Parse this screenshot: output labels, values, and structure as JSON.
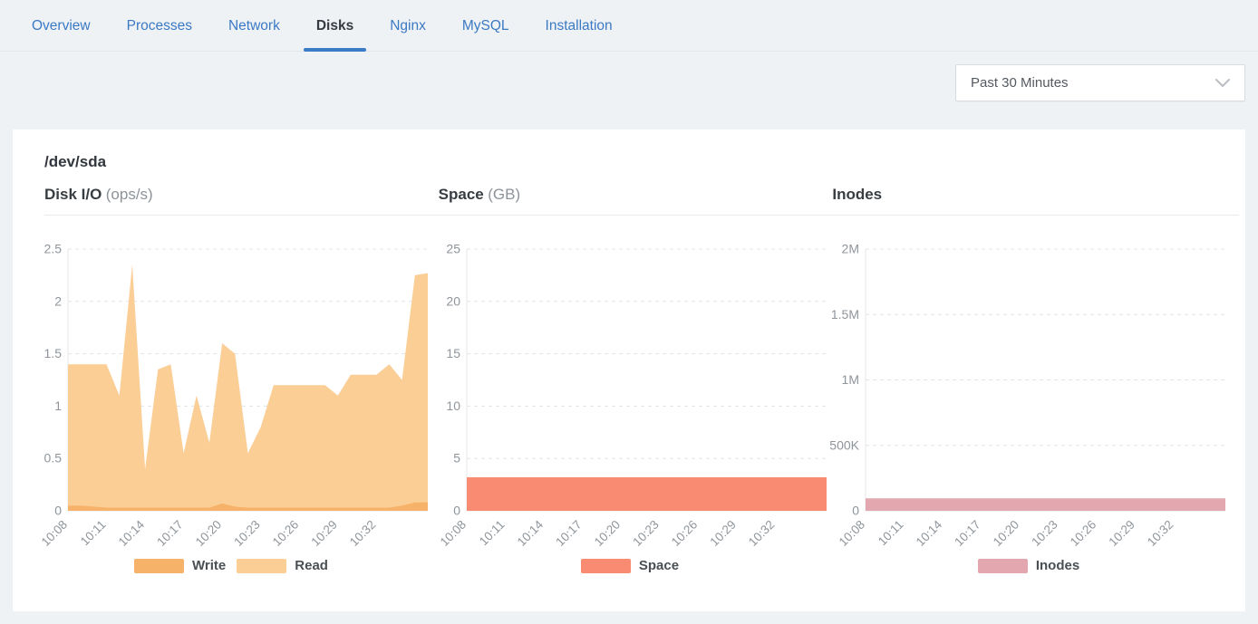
{
  "tabs": [
    {
      "label": "Overview",
      "active": false
    },
    {
      "label": "Processes",
      "active": false
    },
    {
      "label": "Network",
      "active": false
    },
    {
      "label": "Disks",
      "active": true
    },
    {
      "label": "Nginx",
      "active": false
    },
    {
      "label": "MySQL",
      "active": false
    },
    {
      "label": "Installation",
      "active": false
    }
  ],
  "toolbar": {
    "time_range_value": "Past 30 Minutes",
    "chevron_icon": "chevron-down"
  },
  "card": {
    "device_name": "/dev/sda"
  },
  "colors": {
    "accent_blue": "#3b7cc9",
    "page_bg": "#eff2f5",
    "card_bg": "#ffffff",
    "write": "#f7b269",
    "read": "#fbce96",
    "space": "#f98b72",
    "inodes": "#e3a7af",
    "grid_line": "#e0e4e8",
    "axis_line": "#e4e7ea",
    "tick_text": "#8f959b"
  },
  "chart_data": [
    {
      "type": "area",
      "title": "Disk I/O",
      "title_unit": "(ops/s)",
      "ylabel": "ops/s",
      "ylim": [
        0,
        2.5
      ],
      "grid": "dashed horizontal",
      "legend_position": "bottom",
      "x": [
        "10:08",
        "10:09",
        "10:10",
        "10:11",
        "10:12",
        "10:13",
        "10:14",
        "10:15",
        "10:16",
        "10:17",
        "10:18",
        "10:19",
        "10:20",
        "10:21",
        "10:22",
        "10:23",
        "10:24",
        "10:25",
        "10:26",
        "10:27",
        "10:28",
        "10:29",
        "10:30",
        "10:31",
        "10:32",
        "10:33",
        "10:34",
        "10:35",
        "10:36"
      ],
      "x_tick_every": 3,
      "y_ticks": [
        {
          "v": 0,
          "label": "0"
        },
        {
          "v": 0.5,
          "label": "0.5"
        },
        {
          "v": 1,
          "label": "1"
        },
        {
          "v": 1.5,
          "label": "1.5"
        },
        {
          "v": 2,
          "label": "2"
        },
        {
          "v": 2.5,
          "label": "2.5"
        }
      ],
      "series": [
        {
          "name": "Write",
          "color": "#f7b269",
          "values": [
            0.05,
            0.05,
            0.04,
            0.03,
            0.03,
            0.03,
            0.03,
            0.03,
            0.03,
            0.03,
            0.03,
            0.03,
            0.07,
            0.04,
            0.03,
            0.03,
            0.03,
            0.03,
            0.03,
            0.03,
            0.03,
            0.03,
            0.03,
            0.03,
            0.03,
            0.03,
            0.05,
            0.08,
            0.08
          ]
        },
        {
          "name": "Read",
          "color": "#fbce96",
          "values": [
            1.4,
            1.4,
            1.4,
            1.4,
            1.1,
            2.35,
            0.4,
            1.35,
            1.4,
            0.55,
            1.1,
            0.65,
            1.6,
            1.5,
            0.55,
            0.8,
            1.2,
            1.2,
            1.2,
            1.2,
            1.2,
            1.1,
            1.3,
            1.3,
            1.3,
            1.4,
            1.25,
            2.25,
            2.27
          ]
        }
      ]
    },
    {
      "type": "area",
      "title": "Space",
      "title_unit": "(GB)",
      "ylabel": "GB",
      "ylim": [
        0,
        25
      ],
      "grid": "dashed horizontal",
      "legend_position": "bottom",
      "x": [
        "10:08",
        "10:09",
        "10:10",
        "10:11",
        "10:12",
        "10:13",
        "10:14",
        "10:15",
        "10:16",
        "10:17",
        "10:18",
        "10:19",
        "10:20",
        "10:21",
        "10:22",
        "10:23",
        "10:24",
        "10:25",
        "10:26",
        "10:27",
        "10:28",
        "10:29",
        "10:30",
        "10:31",
        "10:32",
        "10:33",
        "10:34",
        "10:35",
        "10:36"
      ],
      "x_tick_every": 3,
      "y_ticks": [
        {
          "v": 0,
          "label": "0"
        },
        {
          "v": 5,
          "label": "5"
        },
        {
          "v": 10,
          "label": "10"
        },
        {
          "v": 15,
          "label": "15"
        },
        {
          "v": 20,
          "label": "20"
        },
        {
          "v": 25,
          "label": "25"
        }
      ],
      "series": [
        {
          "name": "Space",
          "color": "#f98b72",
          "values": [
            3.2,
            3.2,
            3.2,
            3.2,
            3.2,
            3.2,
            3.2,
            3.2,
            3.2,
            3.2,
            3.2,
            3.2,
            3.2,
            3.2,
            3.2,
            3.2,
            3.2,
            3.2,
            3.2,
            3.2,
            3.2,
            3.2,
            3.2,
            3.2,
            3.2,
            3.2,
            3.2,
            3.2,
            3.2
          ]
        }
      ]
    },
    {
      "type": "area",
      "title": "Inodes",
      "title_unit": "",
      "ylabel": "inodes",
      "ylim": [
        0,
        2000000
      ],
      "grid": "dashed horizontal",
      "legend_position": "bottom",
      "x": [
        "10:08",
        "10:09",
        "10:10",
        "10:11",
        "10:12",
        "10:13",
        "10:14",
        "10:15",
        "10:16",
        "10:17",
        "10:18",
        "10:19",
        "10:20",
        "10:21",
        "10:22",
        "10:23",
        "10:24",
        "10:25",
        "10:26",
        "10:27",
        "10:28",
        "10:29",
        "10:30",
        "10:31",
        "10:32",
        "10:33",
        "10:34",
        "10:35",
        "10:36"
      ],
      "x_tick_every": 3,
      "y_ticks": [
        {
          "v": 0,
          "label": "0"
        },
        {
          "v": 500000,
          "label": "500K"
        },
        {
          "v": 1000000,
          "label": "1M"
        },
        {
          "v": 1500000,
          "label": "1.5M"
        },
        {
          "v": 2000000,
          "label": "2M"
        }
      ],
      "series": [
        {
          "name": "Inodes",
          "color": "#e3a7af",
          "values": [
            95000,
            95000,
            95000,
            95000,
            95000,
            95000,
            95000,
            95000,
            95000,
            95000,
            95000,
            95000,
            95000,
            95000,
            95000,
            95000,
            95000,
            95000,
            95000,
            95000,
            95000,
            95000,
            95000,
            95000,
            95000,
            95000,
            95000,
            95000,
            95000
          ]
        }
      ]
    }
  ]
}
